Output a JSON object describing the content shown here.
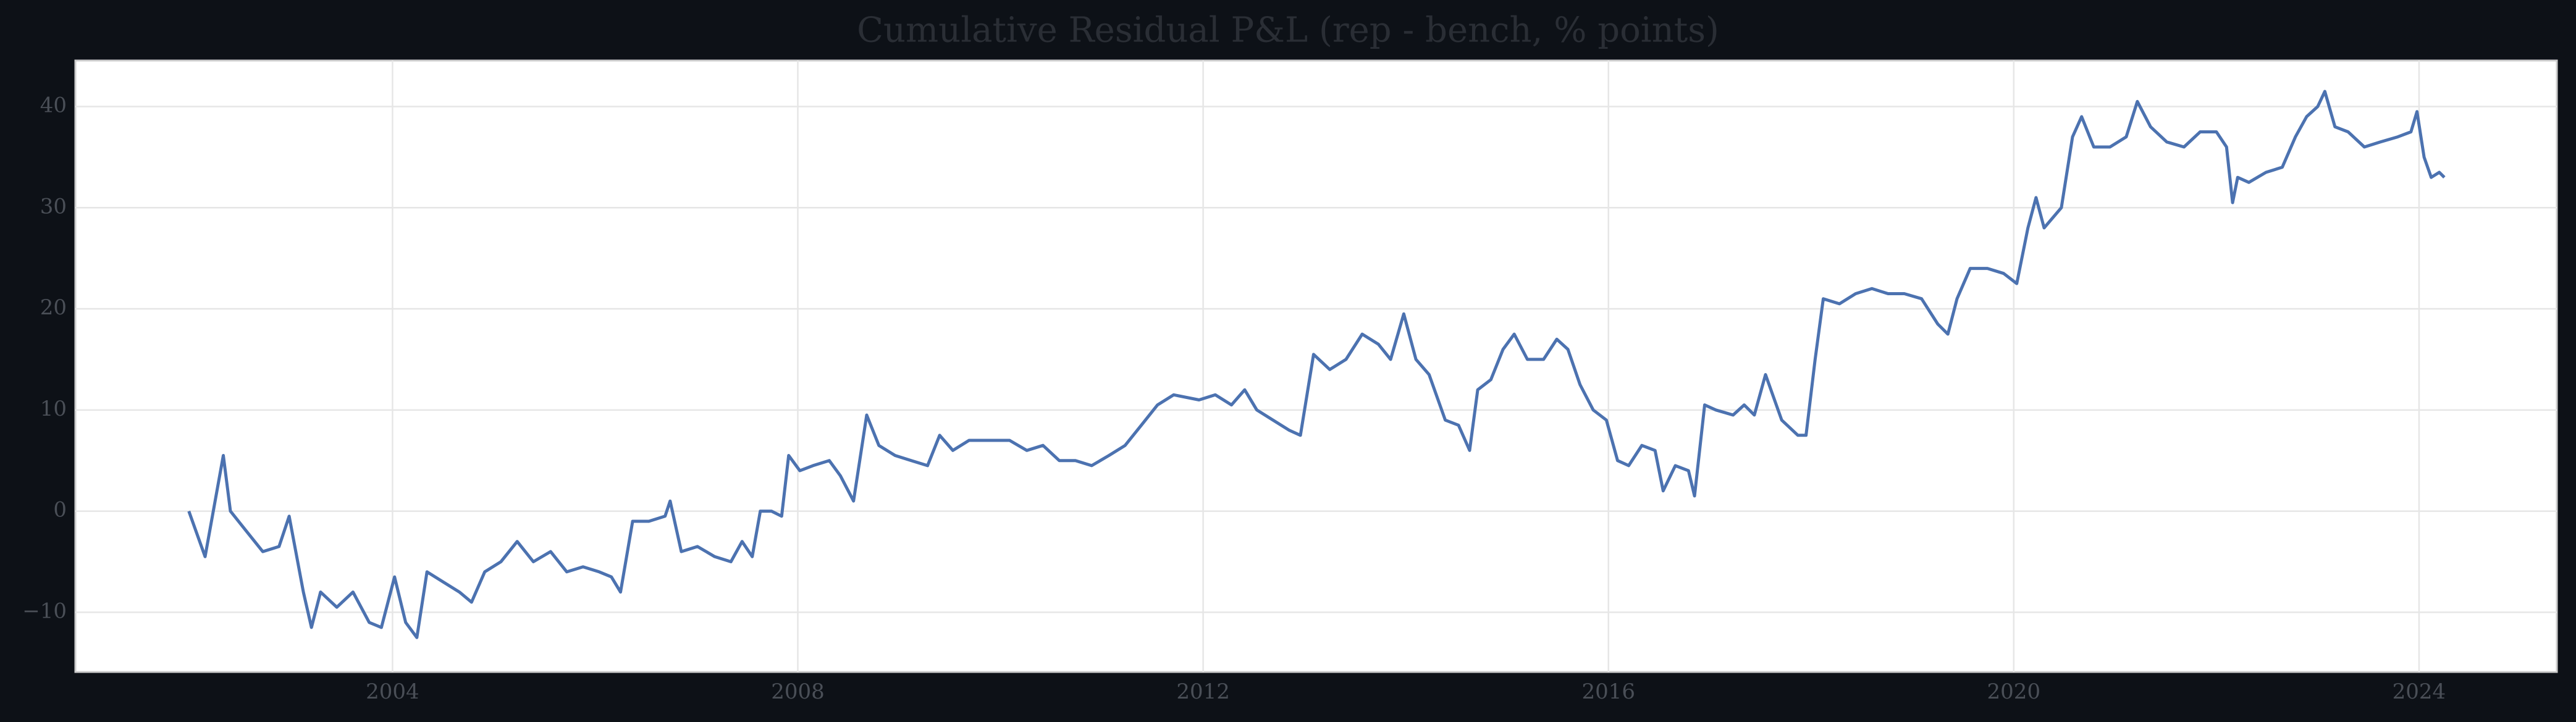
{
  "chart_data": {
    "type": "line",
    "title": "Cumulative Residual P&L (rep - bench, % points)",
    "x": [
      2001.99,
      2002.15,
      2002.33,
      2002.4,
      2002.56,
      2002.72,
      2002.88,
      2002.98,
      2003.12,
      2003.2,
      2003.29,
      2003.45,
      2003.61,
      2003.77,
      2003.89,
      2004.02,
      2004.13,
      2004.24,
      2004.34,
      2004.5,
      2004.66,
      2004.78,
      2004.91,
      2005.07,
      2005.23,
      2005.39,
      2005.56,
      2005.72,
      2005.88,
      2006.04,
      2006.16,
      2006.25,
      2006.37,
      2006.53,
      2006.69,
      2006.74,
      2006.85,
      2007.01,
      2007.18,
      2007.34,
      2007.45,
      2007.55,
      2007.63,
      2007.74,
      2007.84,
      2007.91,
      2008.02,
      2008.15,
      2008.31,
      2008.42,
      2008.55,
      2008.68,
      2008.8,
      2008.96,
      2009.12,
      2009.28,
      2009.4,
      2009.53,
      2009.69,
      2009.85,
      2010.09,
      2010.26,
      2010.42,
      2010.58,
      2010.74,
      2010.9,
      2011.07,
      2011.23,
      2011.39,
      2011.55,
      2011.71,
      2011.96,
      2012.12,
      2012.28,
      2012.41,
      2012.53,
      2012.69,
      2012.85,
      2012.96,
      2013.09,
      2013.25,
      2013.41,
      2013.57,
      2013.73,
      2013.85,
      2013.98,
      2014.1,
      2014.23,
      2014.39,
      2014.52,
      2014.63,
      2014.71,
      2014.84,
      2014.96,
      2015.07,
      2015.2,
      2015.36,
      2015.49,
      2015.6,
      2015.72,
      2015.85,
      2015.98,
      2016.09,
      2016.2,
      2016.33,
      2016.46,
      2016.54,
      2016.66,
      2016.79,
      2016.85,
      2016.95,
      2017.06,
      2017.23,
      2017.34,
      2017.44,
      2017.55,
      2017.71,
      2017.87,
      2017.95,
      2018.04,
      2018.12,
      2018.28,
      2018.44,
      2018.6,
      2018.76,
      2018.92,
      2019.09,
      2019.25,
      2019.35,
      2019.44,
      2019.57,
      2019.74,
      2019.9,
      2020.03,
      2020.14,
      2020.22,
      2020.3,
      2020.47,
      2020.58,
      2020.67,
      2020.79,
      2020.95,
      2021.11,
      2021.22,
      2021.35,
      2021.51,
      2021.68,
      2021.84,
      2022.0,
      2022.1,
      2022.16,
      2022.21,
      2022.32,
      2022.49,
      2022.65,
      2022.78,
      2022.89,
      2023.0,
      2023.07,
      2023.17,
      2023.3,
      2023.46,
      2023.62,
      2023.79,
      2023.92,
      2023.98,
      2024.05,
      2024.12,
      2024.2,
      2024.25
    ],
    "values": [
      0,
      -4.5,
      5.5,
      0,
      -2,
      -4,
      -3.5,
      -0.5,
      -8,
      -11.5,
      -8,
      -9.5,
      -8,
      -11,
      -11.5,
      -6.5,
      -11,
      -12.5,
      -6,
      -7,
      -8,
      -9,
      -6,
      -5,
      -3,
      -5,
      -4,
      -6,
      -5.5,
      -6,
      -6.5,
      -8,
      -1,
      -1,
      -0.5,
      1,
      -4,
      -3.5,
      -4.5,
      -5,
      -3,
      -4.5,
      0,
      0,
      -0.5,
      5.5,
      4,
      4.5,
      5,
      3.5,
      1,
      9.5,
      6.5,
      5.5,
      5,
      4.5,
      7.5,
      6,
      7,
      7,
      7,
      6,
      6.5,
      5,
      5,
      4.5,
      5.5,
      6.5,
      8.5,
      10.5,
      11.5,
      11,
      11.5,
      10.5,
      12,
      10,
      9,
      8,
      7.5,
      15.5,
      14,
      15,
      17.5,
      16.5,
      15,
      19.5,
      15,
      13.5,
      9,
      8.5,
      6,
      12,
      13,
      16,
      17.5,
      15,
      15,
      17,
      16,
      12.5,
      10,
      9,
      5,
      4.5,
      6.5,
      6,
      2,
      4.5,
      4,
      1.5,
      10.5,
      10,
      9.5,
      10.5,
      9.5,
      13.5,
      9,
      7.5,
      7.5,
      15,
      21,
      20.5,
      21.5,
      22,
      21.5,
      21.5,
      21,
      18.5,
      17.5,
      21,
      24,
      24,
      23.5,
      22.5,
      28,
      31,
      28,
      30,
      37,
      39,
      36,
      36,
      37,
      40.5,
      38,
      36.5,
      36,
      37.5,
      37.5,
      36,
      30.5,
      33,
      32.5,
      33.5,
      34,
      37,
      39,
      40,
      41.5,
      38,
      37.5,
      36,
      36.5,
      37,
      37.5,
      39.5,
      35,
      33,
      33.5,
      33
    ],
    "color": "#4c72b0",
    "xlim": [
      2000.87,
      2025.36
    ],
    "xticks": [
      2004,
      2008,
      2012,
      2016,
      2020,
      2024
    ],
    "ylim": [
      -15.9,
      44.55
    ],
    "yticks": [
      {
        "value": -10,
        "label": "−10"
      },
      0,
      10,
      20,
      30,
      40
    ],
    "grid": true
  }
}
